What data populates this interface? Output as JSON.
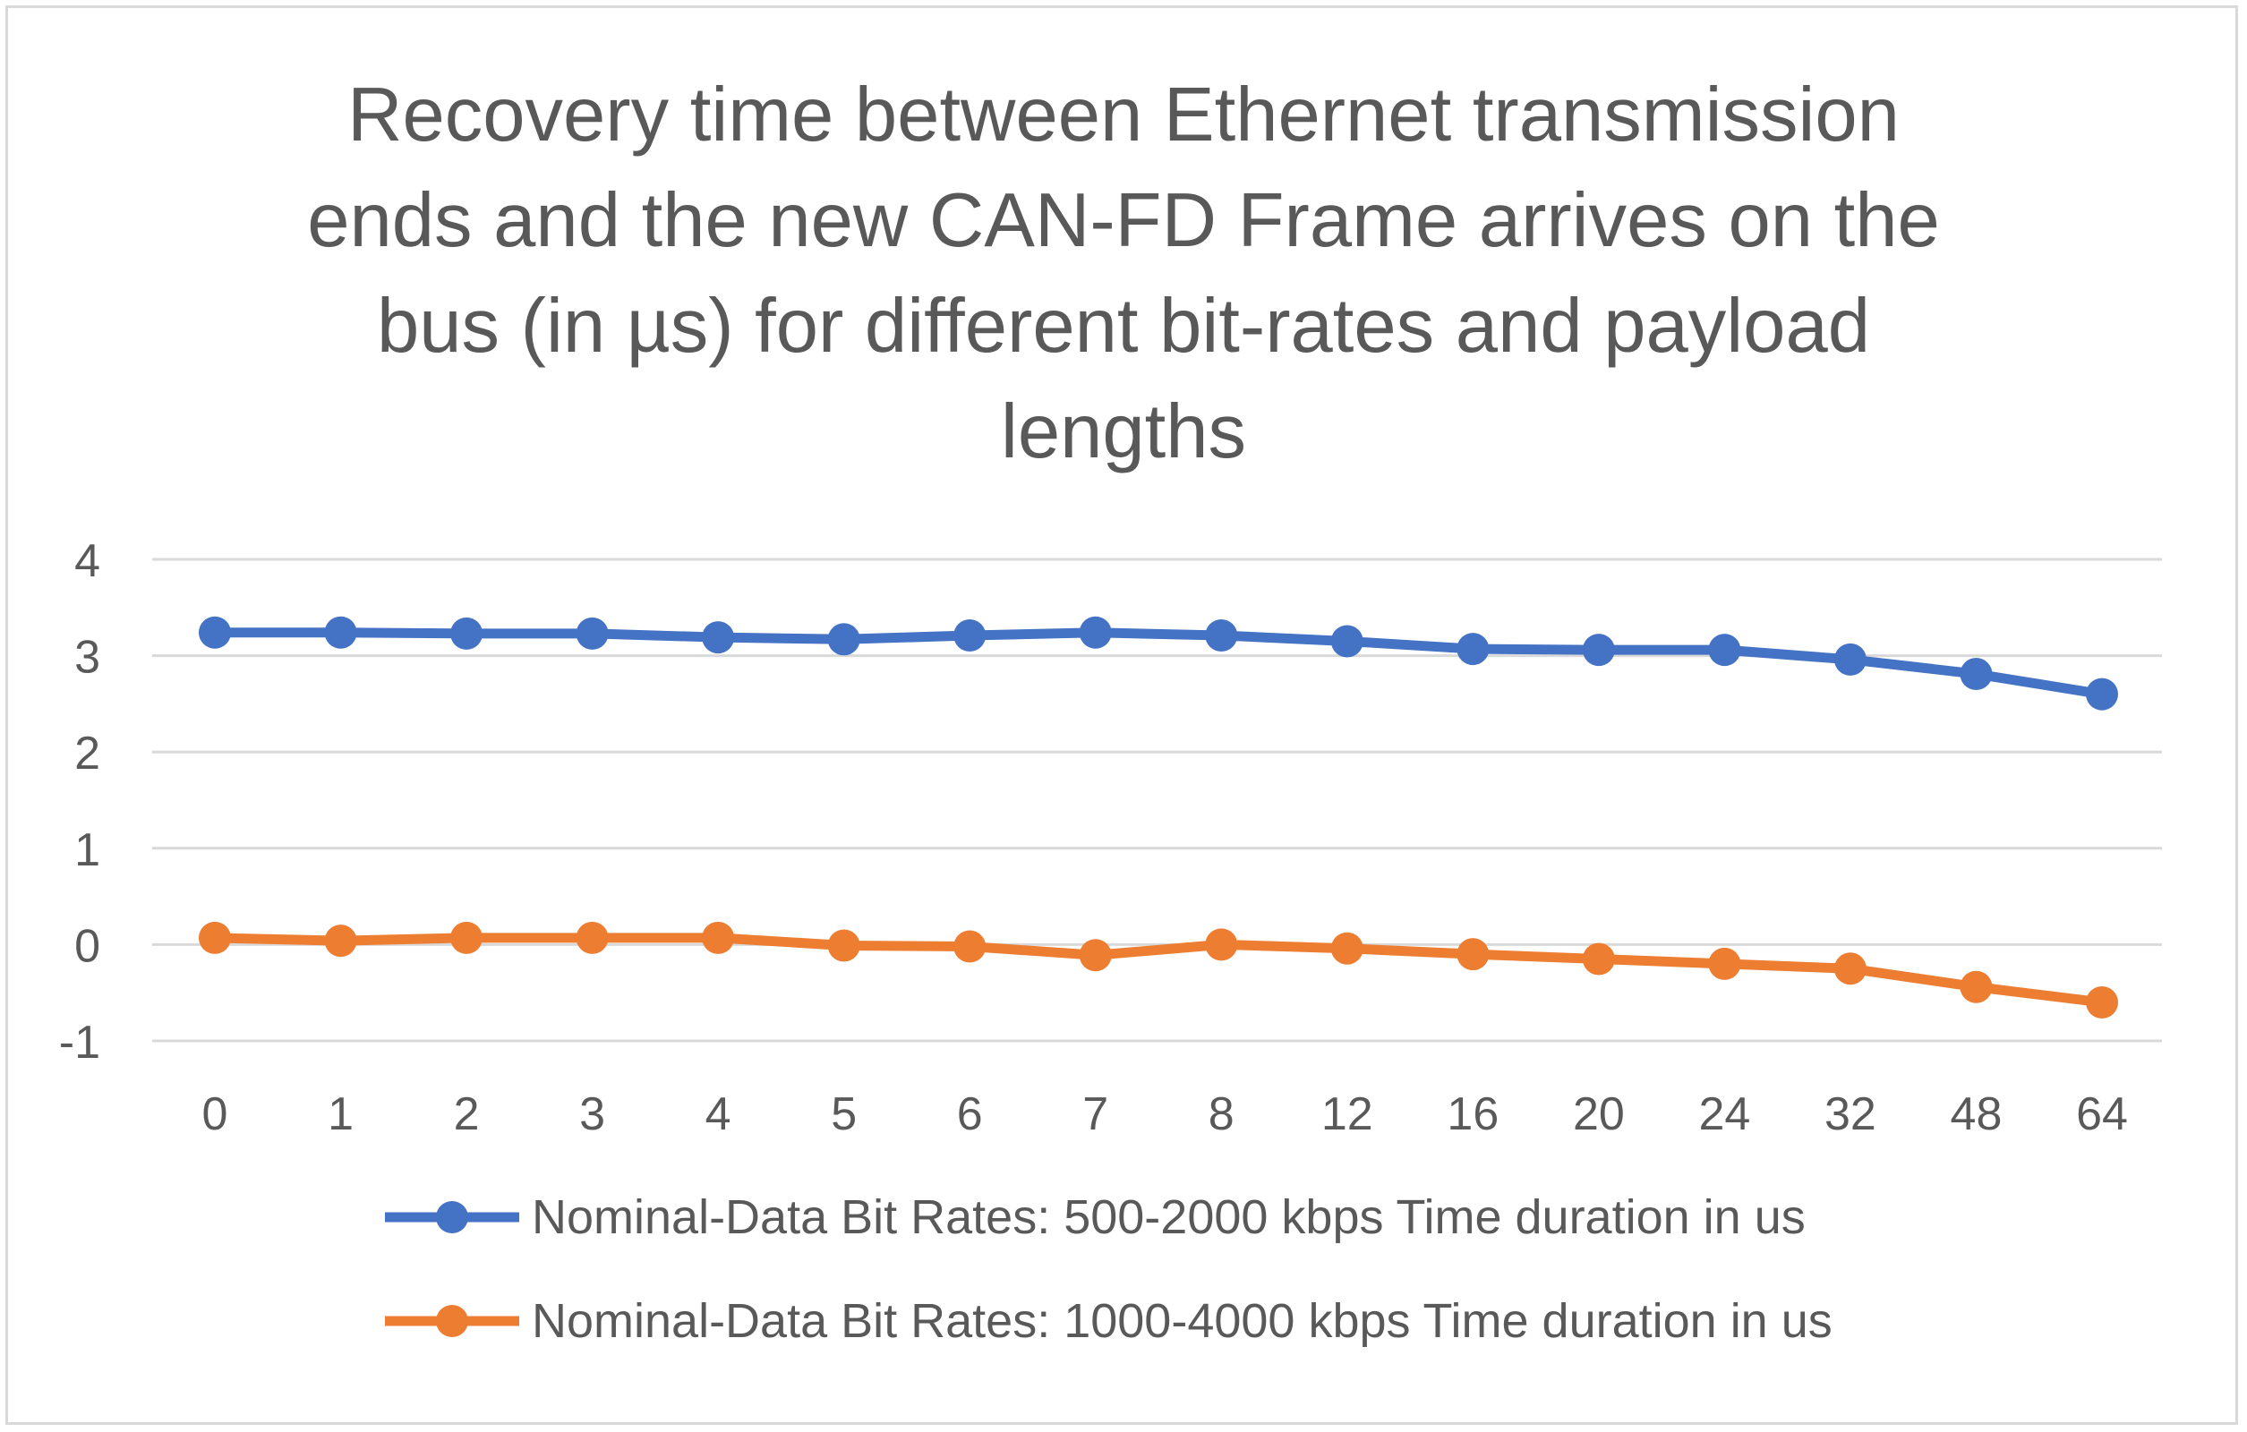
{
  "chart_data": {
    "type": "line",
    "title_lines": [
      "Recovery time between Ethernet transmission",
      "ends and the new CAN-FD Frame arrives on the",
      "bus (in µs) for different bit-rates and payload",
      "lengths"
    ],
    "categories": [
      "0",
      "1",
      "2",
      "3",
      "4",
      "5",
      "6",
      "7",
      "8",
      "12",
      "16",
      "20",
      "24",
      "32",
      "48",
      "64"
    ],
    "ylim": [
      -1,
      4
    ],
    "yticks": [
      "4",
      "3",
      "2",
      "1",
      "0",
      "-1"
    ],
    "ytick_values": [
      4,
      3,
      2,
      1,
      0,
      -1
    ],
    "grid": true,
    "legend_position": "bottom",
    "series": [
      {
        "name": "Nominal-Data Bit Rates: 500-2000 kbps Time duration in us",
        "color": "#4472c4",
        "values": [
          3.24,
          3.24,
          3.23,
          3.23,
          3.19,
          3.17,
          3.21,
          3.24,
          3.21,
          3.15,
          3.07,
          3.06,
          3.06,
          2.96,
          2.81,
          2.6
        ]
      },
      {
        "name": "Nominal-Data Bit Rates: 1000-4000 kbps Time duration in us",
        "color": "#ed7d31",
        "values": [
          0.07,
          0.04,
          0.07,
          0.07,
          0.07,
          -0.01,
          -0.02,
          -0.11,
          0.0,
          -0.04,
          -0.1,
          -0.15,
          -0.2,
          -0.25,
          -0.44,
          -0.6
        ]
      }
    ]
  }
}
